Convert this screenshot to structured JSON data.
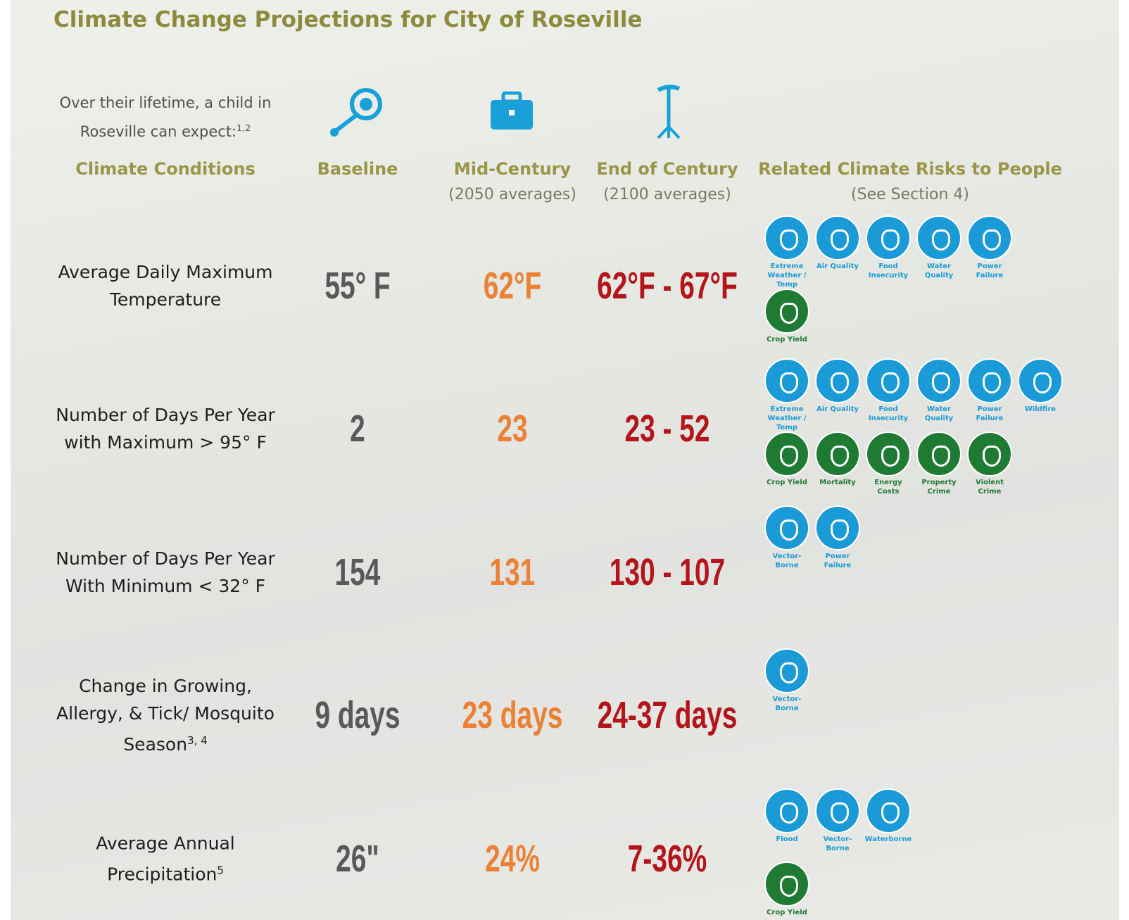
{
  "header": {
    "title": "Climate Change Projections for City of Roseville",
    "intro": "Over their lifetime, a child in Roseville can expect:",
    "intro_sup": "1,2"
  },
  "columns": [
    {
      "title": "Climate Conditions"
    },
    {
      "title": "Baseline"
    },
    {
      "title": "Mid-Century",
      "subtitle": "(2050 averages)"
    },
    {
      "title": "End of Century",
      "subtitle": "(2100 averages)"
    },
    {
      "title": "Related Climate Risks to People",
      "subtitle": "(See Section 4)"
    }
  ],
  "value_colors": [
    "#58595b",
    "#ec8035",
    "#b3151b"
  ],
  "rows": [
    {
      "condition": "Average Daily Maximum Temperature",
      "values": [
        "55° F",
        "62°F",
        "62°F - 67°F"
      ],
      "risks": [
        [
          {
            "label": "Extreme Weather / Temp",
            "color": "#1a9ad6"
          },
          {
            "label": "Air Quality",
            "color": "#1a9ad6"
          },
          {
            "label": "Food Insecurity",
            "color": "#1a9ad6"
          },
          {
            "label": "Water Quality",
            "color": "#1a9ad6"
          },
          {
            "label": "Power Failure",
            "color": "#1a9ad6"
          }
        ],
        [
          {
            "label": "Crop Yield",
            "color": "#1f7a34"
          }
        ]
      ]
    },
    {
      "condition": "Number of Days Per Year with Maximum > 95° F",
      "values": [
        "2",
        "23",
        "23 - 52"
      ],
      "risks": [
        [
          {
            "label": "Extreme Weather / Temp",
            "color": "#1a9ad6"
          },
          {
            "label": "Air Quality",
            "color": "#1a9ad6"
          },
          {
            "label": "Food Insecurity",
            "color": "#1a9ad6"
          },
          {
            "label": "Water Quality",
            "color": "#1a9ad6"
          },
          {
            "label": "Power Failure",
            "color": "#1a9ad6"
          },
          {
            "label": "Wildfire",
            "color": "#1a9ad6"
          }
        ],
        [
          {
            "label": "Crop Yield",
            "color": "#1f7a34"
          },
          {
            "label": "Mortality",
            "color": "#1f7a34"
          },
          {
            "label": "Energy Costs",
            "color": "#1f7a34"
          },
          {
            "label": "Property Crime",
            "color": "#1f7a34"
          },
          {
            "label": "Violent Crime",
            "color": "#1f7a34"
          }
        ]
      ]
    },
    {
      "condition": "Number of Days Per Year With Minimum < 32° F",
      "values": [
        "154",
        "131",
        "130 - 107"
      ],
      "risks": [
        [
          {
            "label": "Vector-Borne",
            "color": "#1a9ad6"
          },
          {
            "label": "Power Failure",
            "color": "#1a9ad6"
          }
        ]
      ]
    },
    {
      "condition": "Change in Growing, Allergy, & Tick/ Mosquito Season",
      "condition_sup": "3, 4",
      "values": [
        "9 days",
        "23 days",
        "24-37 days"
      ],
      "risks": [
        [
          {
            "label": "Vector-Borne",
            "color": "#1a9ad6"
          }
        ]
      ]
    },
    {
      "condition": "Average Annual Precipitation",
      "condition_sup": "5",
      "values": [
        "26\"",
        "24%",
        "7-36%"
      ],
      "risks": [
        [
          {
            "label": "Flood",
            "color": "#1a9ad6"
          },
          {
            "label": "Vector-Borne",
            "color": "#1a9ad6"
          },
          {
            "label": "Waterborne",
            "color": "#1a9ad6"
          }
        ],
        [
          {
            "label": "Crop Yield",
            "color": "#1f7a34"
          }
        ]
      ]
    }
  ]
}
